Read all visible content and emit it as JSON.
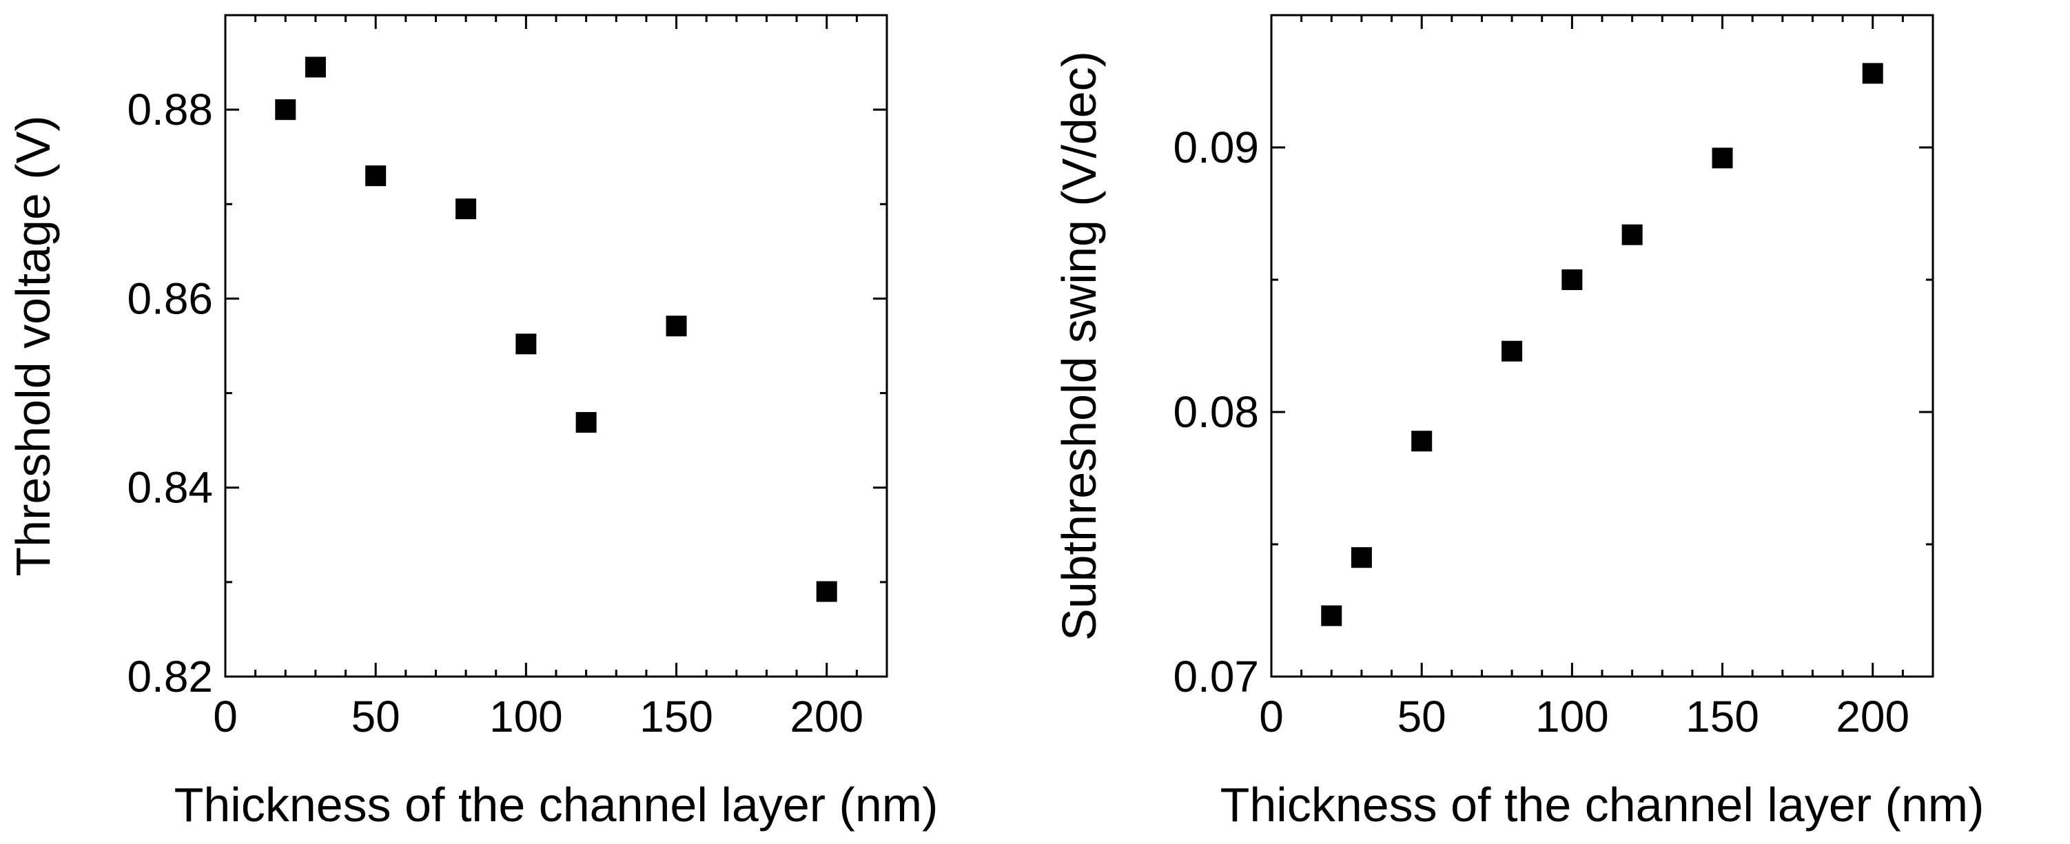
{
  "chart_data": [
    {
      "type": "scatter",
      "title": "",
      "xlabel": "Thickness of the channel layer (nm)",
      "ylabel": "Threshold voltage (V)",
      "xlim": [
        0,
        220
      ],
      "ylim": [
        0.82,
        0.89
      ],
      "xticks": [
        0,
        50,
        100,
        150,
        200
      ],
      "xtick_labels": [
        "0",
        "50",
        "100",
        "150",
        "200"
      ],
      "yticks": [
        0.82,
        0.84,
        0.86,
        0.88
      ],
      "ytick_labels": [
        "0.82",
        "0.84",
        "0.86",
        "0.88"
      ],
      "x_minor_step": 10,
      "y_minor_step": 0.01,
      "marker": "square",
      "marker_color": "#000000",
      "series": [
        {
          "name": "Threshold voltage",
          "x": [
            20,
            30,
            50,
            80,
            100,
            120,
            150,
            200
          ],
          "y": [
            0.88,
            0.8845,
            0.873,
            0.8695,
            0.8552,
            0.8469,
            0.8571,
            0.829
          ]
        }
      ]
    },
    {
      "type": "scatter",
      "title": "",
      "xlabel": "Thickness of the channel layer (nm)",
      "ylabel": "Subthreshold swing (V/dec)",
      "xlim": [
        0,
        220
      ],
      "ylim": [
        0.07,
        0.095
      ],
      "xticks": [
        0,
        50,
        100,
        150,
        200
      ],
      "xtick_labels": [
        "0",
        "50",
        "100",
        "150",
        "200"
      ],
      "yticks": [
        0.07,
        0.08,
        0.09
      ],
      "ytick_labels": [
        "0.07",
        "0.08",
        "0.09"
      ],
      "x_minor_step": 10,
      "y_minor_step": 0.005,
      "marker": "square",
      "marker_color": "#000000",
      "series": [
        {
          "name": "Subthreshold swing",
          "x": [
            20,
            30,
            50,
            80,
            100,
            120,
            150,
            200
          ],
          "y": [
            0.0723,
            0.0745,
            0.0789,
            0.0823,
            0.085,
            0.0867,
            0.0896,
            0.0928
          ]
        }
      ]
    }
  ]
}
